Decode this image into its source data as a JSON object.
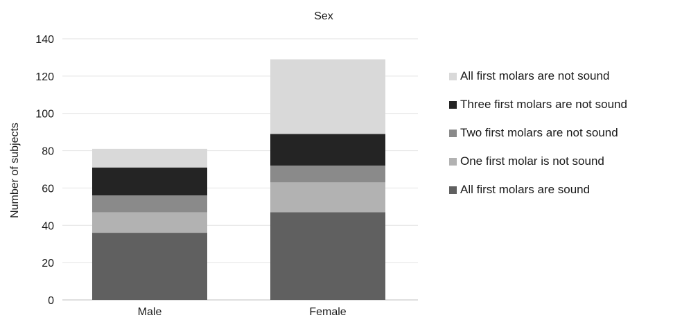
{
  "chart_data": {
    "type": "bar",
    "stacked": true,
    "title": "Sex",
    "ylabel": "Number of subjects",
    "xlabel": "",
    "categories": [
      "Male",
      "Female"
    ],
    "ylim": [
      0,
      140
    ],
    "yticks": [
      0,
      20,
      40,
      60,
      80,
      100,
      120,
      140
    ],
    "grid": true,
    "legend_position": "right",
    "series": [
      {
        "name": "All first molars are sound",
        "values": [
          36,
          47
        ],
        "color": "#606060"
      },
      {
        "name": "One first molar is not sound",
        "values": [
          11,
          16
        ],
        "color": "#b2b2b2"
      },
      {
        "name": "Two first molars are not sound",
        "values": [
          9,
          9
        ],
        "color": "#8a8a8a"
      },
      {
        "name": "Three first molars are not sound",
        "values": [
          15,
          17
        ],
        "color": "#242424"
      },
      {
        "name": "All first molars are not sound",
        "values": [
          10,
          40
        ],
        "color": "#d9d9d9"
      }
    ],
    "legend_order": [
      4,
      3,
      2,
      1,
      0
    ]
  }
}
